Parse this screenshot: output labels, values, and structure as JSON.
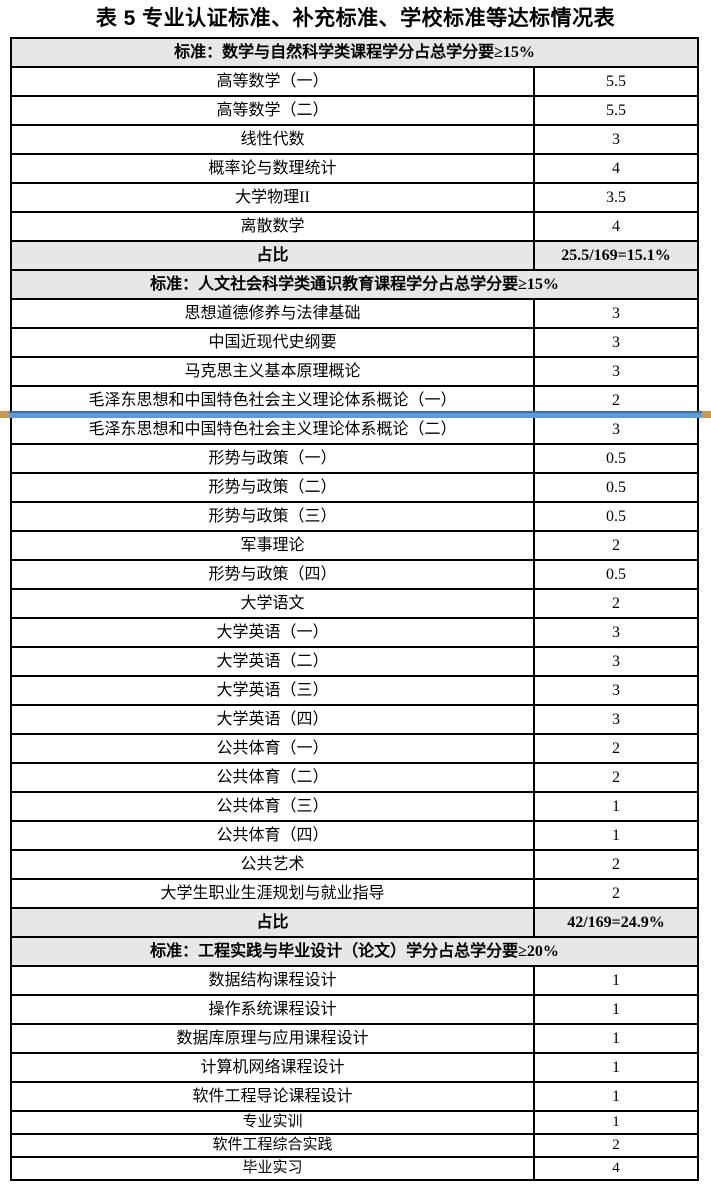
{
  "title": "表 5 专业认证标准、补充标准、学校标准等达标情况表",
  "colors": {
    "section_header_bg": "#e7e7e7",
    "table_border": "#000000",
    "insert_line_blue": "#5b9bd5",
    "insert_line_top_edge": "#3c6da6",
    "insert_line_handle": "#c99951"
  },
  "insert_indicator": {
    "section_index": 1,
    "after_row_index": 3
  },
  "table": {
    "sections": [
      {
        "header": "标准：数学与自然科学类课程学分占总学分要≥15%",
        "rows": [
          {
            "course": "高等数学（一）",
            "credit": "5.5"
          },
          {
            "course": "高等数学（二）",
            "credit": "5.5"
          },
          {
            "course": "线性代数",
            "credit": "3"
          },
          {
            "course": "概率论与数理统计",
            "credit": "4"
          },
          {
            "course": "大学物理II",
            "credit": "3.5"
          },
          {
            "course": "离散数学",
            "credit": "4"
          }
        ],
        "ratio": {
          "label": "占比",
          "value": "25.5/169=15.1%"
        }
      },
      {
        "header": "标准：人文社会科学类通识教育课程学分占总学分要≥15%",
        "rows": [
          {
            "course": "思想道德修养与法律基础",
            "credit": "3"
          },
          {
            "course": "中国近现代史纲要",
            "credit": "3"
          },
          {
            "course": "马克思主义基本原理概论",
            "credit": "3"
          },
          {
            "course": "毛泽东思想和中国特色社会主义理论体系概论（一）",
            "credit": "2"
          },
          {
            "course": "毛泽东思想和中国特色社会主义理论体系概论（二）",
            "credit": "3"
          },
          {
            "course": "形势与政策（一）",
            "credit": "0.5"
          },
          {
            "course": "形势与政策（二）",
            "credit": "0.5"
          },
          {
            "course": "形势与政策（三）",
            "credit": "0.5"
          },
          {
            "course": "军事理论",
            "credit": "2"
          },
          {
            "course": "形势与政策（四）",
            "credit": "0.5"
          },
          {
            "course": "大学语文",
            "credit": "2"
          },
          {
            "course": "大学英语（一）",
            "credit": "3"
          },
          {
            "course": "大学英语（二）",
            "credit": "3"
          },
          {
            "course": "大学英语（三）",
            "credit": "3"
          },
          {
            "course": "大学英语（四）",
            "credit": "3"
          },
          {
            "course": "公共体育（一）",
            "credit": "2"
          },
          {
            "course": "公共体育（二）",
            "credit": "2"
          },
          {
            "course": "公共体育（三）",
            "credit": "1"
          },
          {
            "course": "公共体育（四）",
            "credit": "1"
          },
          {
            "course": "公共艺术",
            "credit": "2"
          },
          {
            "course": "大学生职业生涯规划与就业指导",
            "credit": "2"
          }
        ],
        "ratio": {
          "label": "占比",
          "value": "42/169=24.9%"
        }
      },
      {
        "header": "标准：工程实践与毕业设计（论文）学分占总学分要≥20%",
        "rows": [
          {
            "course": "数据结构课程设计",
            "credit": "1"
          },
          {
            "course": "操作系统课程设计",
            "credit": "1"
          },
          {
            "course": "数据库原理与应用课程设计",
            "credit": "1"
          },
          {
            "course": "计算机网络课程设计",
            "credit": "1"
          },
          {
            "course": "软件工程导论课程设计",
            "credit": "1"
          },
          {
            "course": "专业实训",
            "credit": "1"
          },
          {
            "course": "软件工程综合实践",
            "credit": "2"
          },
          {
            "course": "毕业实习",
            "credit": "4"
          }
        ]
      }
    ]
  }
}
